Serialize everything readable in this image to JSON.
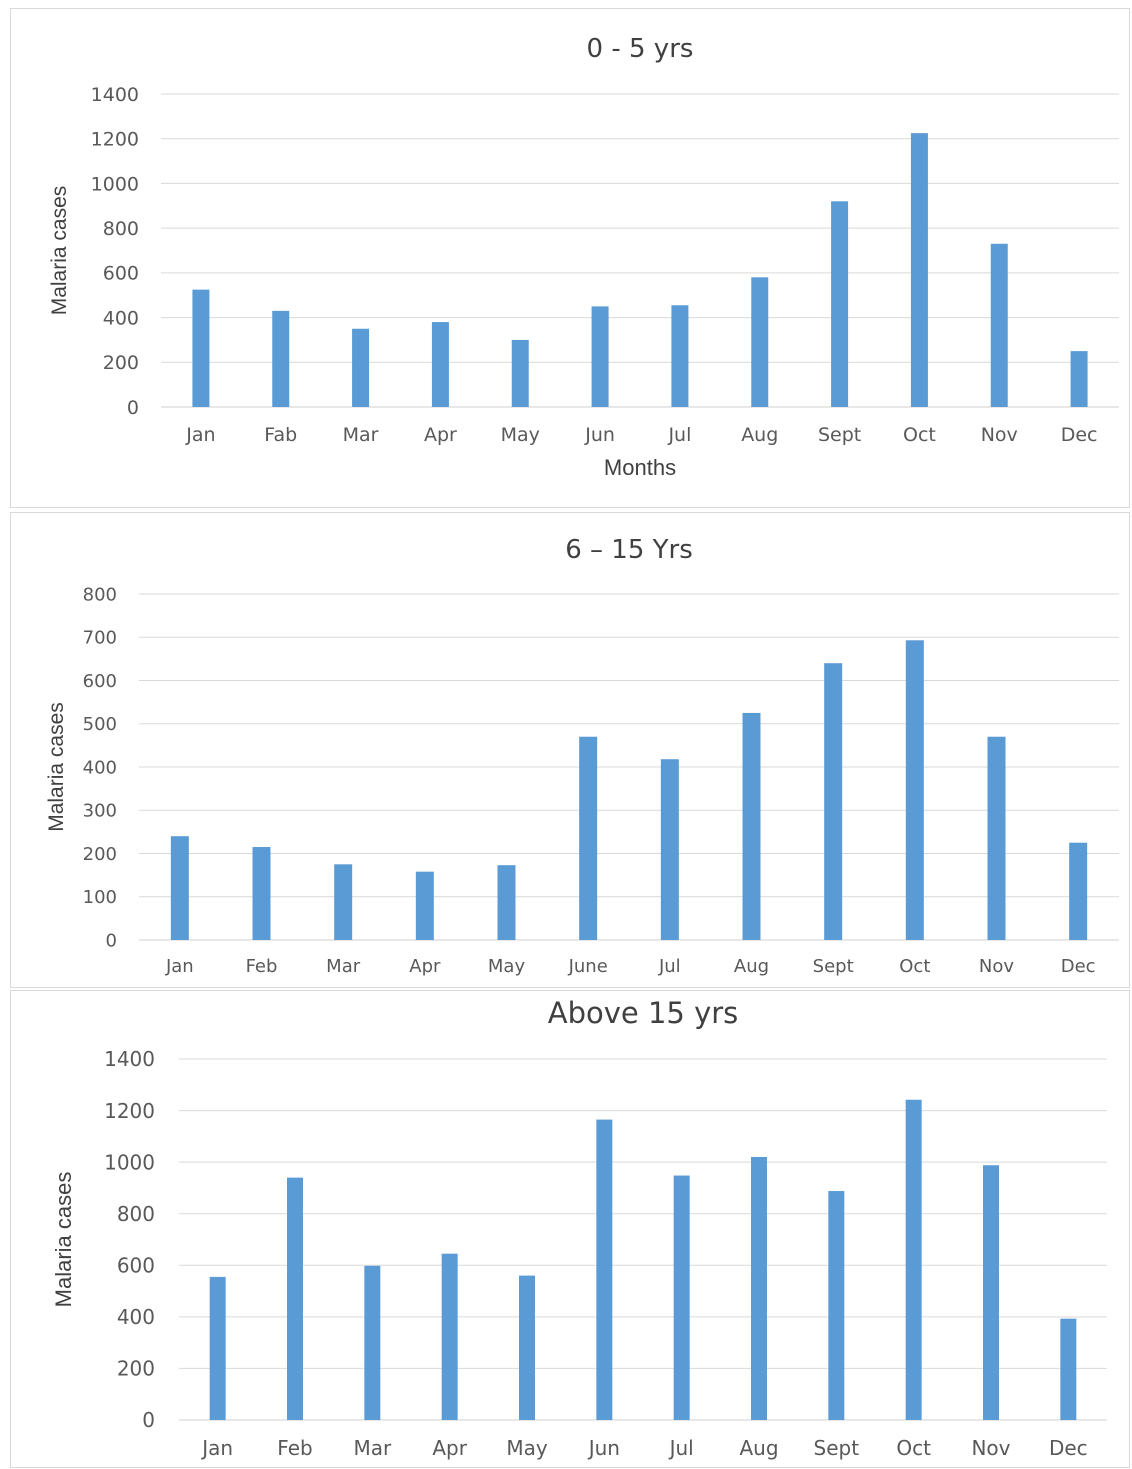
{
  "chart_data": [
    {
      "type": "bar",
      "title": "0 - 5 yrs",
      "xlabel": "Months",
      "ylabel": "Malaria cases",
      "ylim": [
        0,
        1400
      ],
      "yticks": [
        "0",
        "200",
        "400",
        "600",
        "800",
        "1000",
        "1200",
        "1400"
      ],
      "categories": [
        "Jan",
        "Fab",
        "Mar",
        "Apr",
        "May",
        "Jun",
        "Jul",
        "Aug",
        "Sept",
        "Oct",
        "Nov",
        "Dec"
      ],
      "values": [
        525,
        430,
        350,
        380,
        300,
        450,
        455,
        580,
        920,
        1225,
        730,
        250
      ],
      "color": "#5b9bd5",
      "grid": true,
      "legend": "none"
    },
    {
      "type": "bar",
      "title": "6 – 15 Yrs",
      "xlabel": "",
      "ylabel": "Malaria cases",
      "ylim": [
        0,
        800
      ],
      "yticks": [
        "0",
        "100",
        "200",
        "300",
        "400",
        "500",
        "600",
        "700",
        "800"
      ],
      "categories": [
        "Jan",
        "Feb",
        "Mar",
        "Apr",
        "May",
        "June",
        "Jul",
        "Aug",
        "Sept",
        "Oct",
        "Nov",
        "Dec"
      ],
      "values": [
        240,
        215,
        175,
        158,
        173,
        470,
        418,
        525,
        640,
        693,
        470,
        225
      ],
      "color": "#5b9bd5",
      "grid": true,
      "legend": "none"
    },
    {
      "type": "bar",
      "title": "Above 15 yrs",
      "xlabel": "",
      "ylabel": "Malaria cases",
      "ylim": [
        0,
        1400
      ],
      "yticks": [
        "0",
        "200",
        "400",
        "600",
        "800",
        "1000",
        "1200",
        "1400"
      ],
      "categories": [
        "Jan",
        "Feb",
        "Mar",
        "Apr",
        "May",
        "Jun",
        "Jul",
        "Aug",
        "Sept",
        "Oct",
        "Nov",
        "Dec"
      ],
      "values": [
        555,
        940,
        598,
        645,
        560,
        1165,
        948,
        1020,
        888,
        1242,
        988,
        393
      ],
      "color": "#5b9bd5",
      "grid": true,
      "legend": "none"
    }
  ]
}
